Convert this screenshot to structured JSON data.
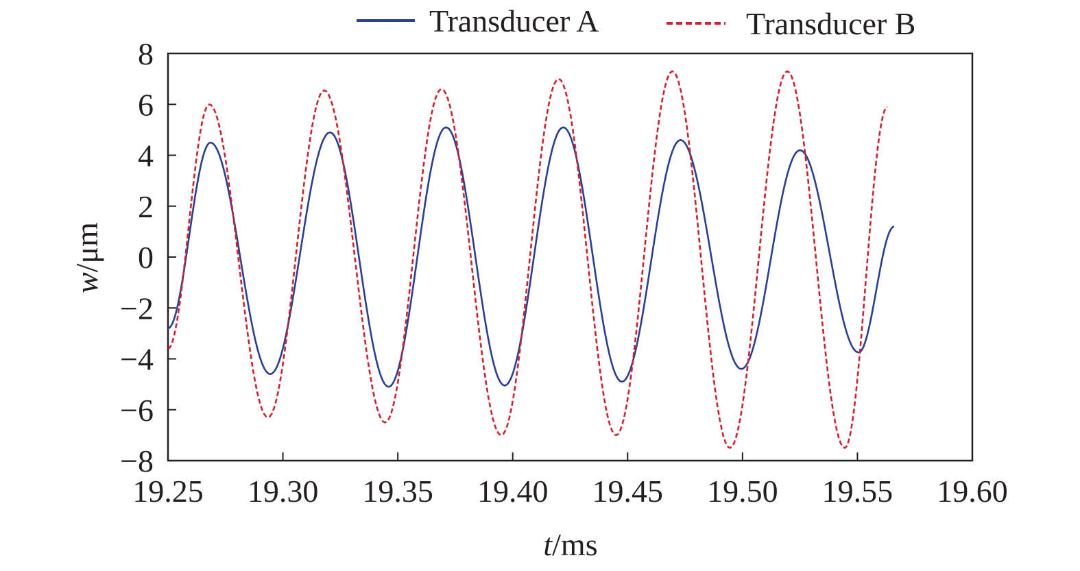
{
  "chart_data": {
    "type": "line",
    "xlabel_var": "t",
    "xlabel_unit": "/ms",
    "ylabel_var": "w",
    "ylabel_unit": "/μm",
    "xlim": [
      19.25,
      19.6
    ],
    "ylim": [
      -8,
      8
    ],
    "xticks": [
      19.25,
      19.3,
      19.35,
      19.4,
      19.45,
      19.5,
      19.55,
      19.6
    ],
    "xtick_labels": [
      "19.25",
      "19.30",
      "19.35",
      "19.40",
      "19.45",
      "19.50",
      "19.55",
      "19.60"
    ],
    "yticks": [
      8,
      6,
      4,
      2,
      0,
      -2,
      -4,
      -6,
      -8
    ],
    "ytick_labels": [
      "8",
      "6",
      "4",
      "2",
      "0",
      "−2",
      "−4",
      "−6",
      "−8"
    ],
    "grid": false,
    "legend_position": "top, outside plot",
    "series": [
      {
        "name": "Transducer A",
        "color": "#2b3f91",
        "style": "solid",
        "x": [
          19.25,
          19.2685,
          19.2945,
          19.3205,
          19.346,
          19.371,
          19.3965,
          19.422,
          19.4475,
          19.473,
          19.4995,
          19.525,
          19.5505,
          19.566
        ],
        "y": [
          -2.8,
          4.5,
          -4.6,
          4.9,
          -5.1,
          5.1,
          -5.05,
          5.1,
          -4.9,
          4.6,
          -4.4,
          4.2,
          -3.75,
          1.2
        ]
      },
      {
        "name": "Transducer B",
        "color": "#d0222e",
        "style": "dashed",
        "x": [
          19.25,
          19.268,
          19.2935,
          19.318,
          19.3445,
          19.369,
          19.395,
          19.42,
          19.445,
          19.4695,
          19.4945,
          19.5195,
          19.5445,
          19.563
        ],
        "y": [
          -3.6,
          6.0,
          -6.3,
          6.55,
          -6.5,
          6.6,
          -7.0,
          7.0,
          -7.0,
          7.3,
          -7.5,
          7.3,
          -7.5,
          5.9
        ]
      }
    ]
  }
}
